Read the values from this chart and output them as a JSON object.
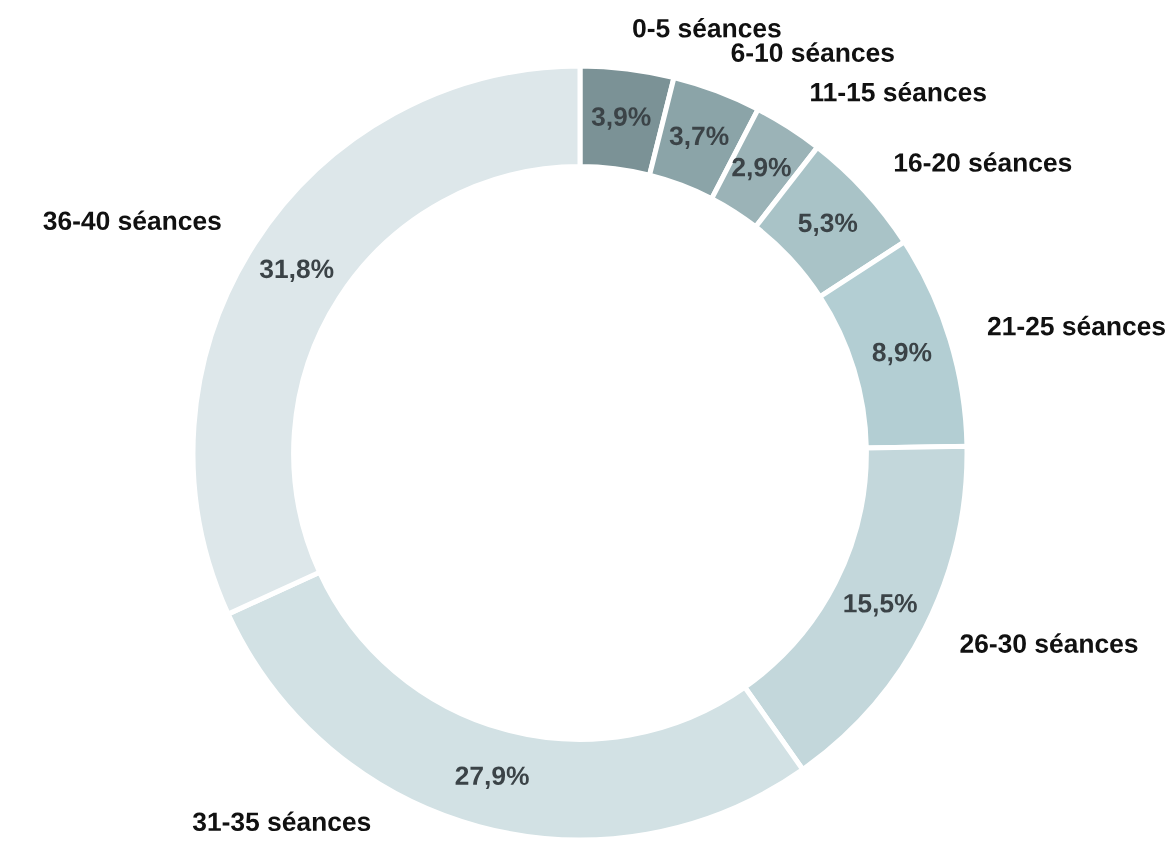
{
  "chart_data": {
    "type": "donut",
    "categories": [
      "0-5 séances",
      "6-10 séances",
      "11-15 séances",
      "16-20 séances",
      "21-25 séances",
      "26-30 séances",
      "31-35 séances",
      "36-40 séances"
    ],
    "values": [
      3.9,
      3.7,
      2.9,
      5.3,
      8.9,
      15.5,
      27.9,
      31.8
    ],
    "colors": [
      "#7b9296",
      "#8ba4a8",
      "#9bb3b7",
      "#a9c3c7",
      "#b3ced3",
      "#c3d7db",
      "#d2e1e4",
      "#dde7ea"
    ],
    "value_labels": [
      "3,9%",
      "3,7%",
      "2,9%",
      "5,3%",
      "8,9%",
      "15,5%",
      "27,9%",
      "31,8%"
    ]
  }
}
